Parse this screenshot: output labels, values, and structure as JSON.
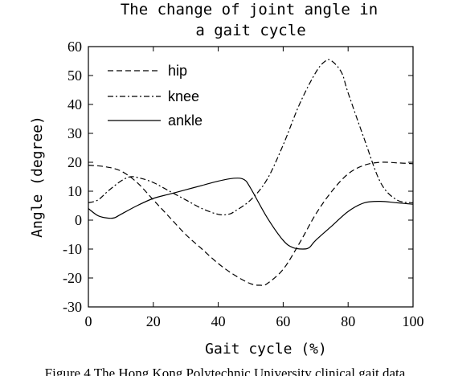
{
  "chart_data": {
    "type": "line",
    "title_lines": [
      "The change of joint angle in",
      "a gait cycle"
    ],
    "xlabel": "Gait cycle (%)",
    "ylabel": "Angle (degree)",
    "xlim": [
      0,
      100
    ],
    "ylim": [
      -30,
      60
    ],
    "xticks": [
      "0",
      "20",
      "40",
      "60",
      "80",
      "100"
    ],
    "yticks": [
      "60",
      "50",
      "40",
      "30",
      "20",
      "10",
      "0",
      "-10",
      "-20",
      "-30"
    ],
    "grid": false,
    "legend_position": "top-left",
    "series": [
      {
        "name": "hip",
        "style": "dashed",
        "color": "#000000",
        "x": [
          0,
          5,
          10,
          15,
          20,
          25,
          30,
          35,
          40,
          45,
          50,
          53,
          55,
          60,
          65,
          70,
          75,
          80,
          85,
          90,
          95,
          100
        ],
        "y": [
          19,
          18.5,
          17,
          13,
          7,
          1,
          -5,
          -10,
          -15,
          -19,
          -22,
          -22.5,
          -22,
          -17,
          -8,
          2,
          10,
          16,
          19,
          20,
          19.8,
          19.5
        ]
      },
      {
        "name": "knee",
        "style": "dashdot",
        "color": "#000000",
        "x": [
          0,
          3,
          6,
          10,
          13,
          16,
          20,
          25,
          30,
          35,
          40,
          43,
          45,
          50,
          55,
          60,
          65,
          70,
          73,
          75,
          78,
          80,
          85,
          90,
          95,
          100
        ],
        "y": [
          6,
          7,
          10,
          13.5,
          15,
          14.5,
          13,
          10,
          7,
          4,
          2,
          2,
          3,
          7,
          14,
          26,
          40,
          51,
          55,
          55,
          51,
          44,
          28,
          13,
          7,
          6
        ]
      },
      {
        "name": "ankle",
        "style": "solid",
        "color": "#000000",
        "x": [
          0,
          3,
          6,
          8,
          10,
          15,
          20,
          25,
          30,
          35,
          40,
          45,
          48,
          50,
          55,
          60,
          63,
          66,
          68,
          70,
          75,
          80,
          85,
          90,
          95,
          100
        ],
        "y": [
          4,
          1.5,
          0.7,
          0.8,
          2,
          5,
          7.5,
          9,
          10.5,
          12,
          13.5,
          14.5,
          14,
          11,
          1,
          -7,
          -9.5,
          -10,
          -9.5,
          -7,
          -2,
          3,
          6,
          6.5,
          6,
          5.5
        ]
      }
    ]
  },
  "caption": "Figure 4 The Hong Kong Polytechnic University clinical gait data"
}
